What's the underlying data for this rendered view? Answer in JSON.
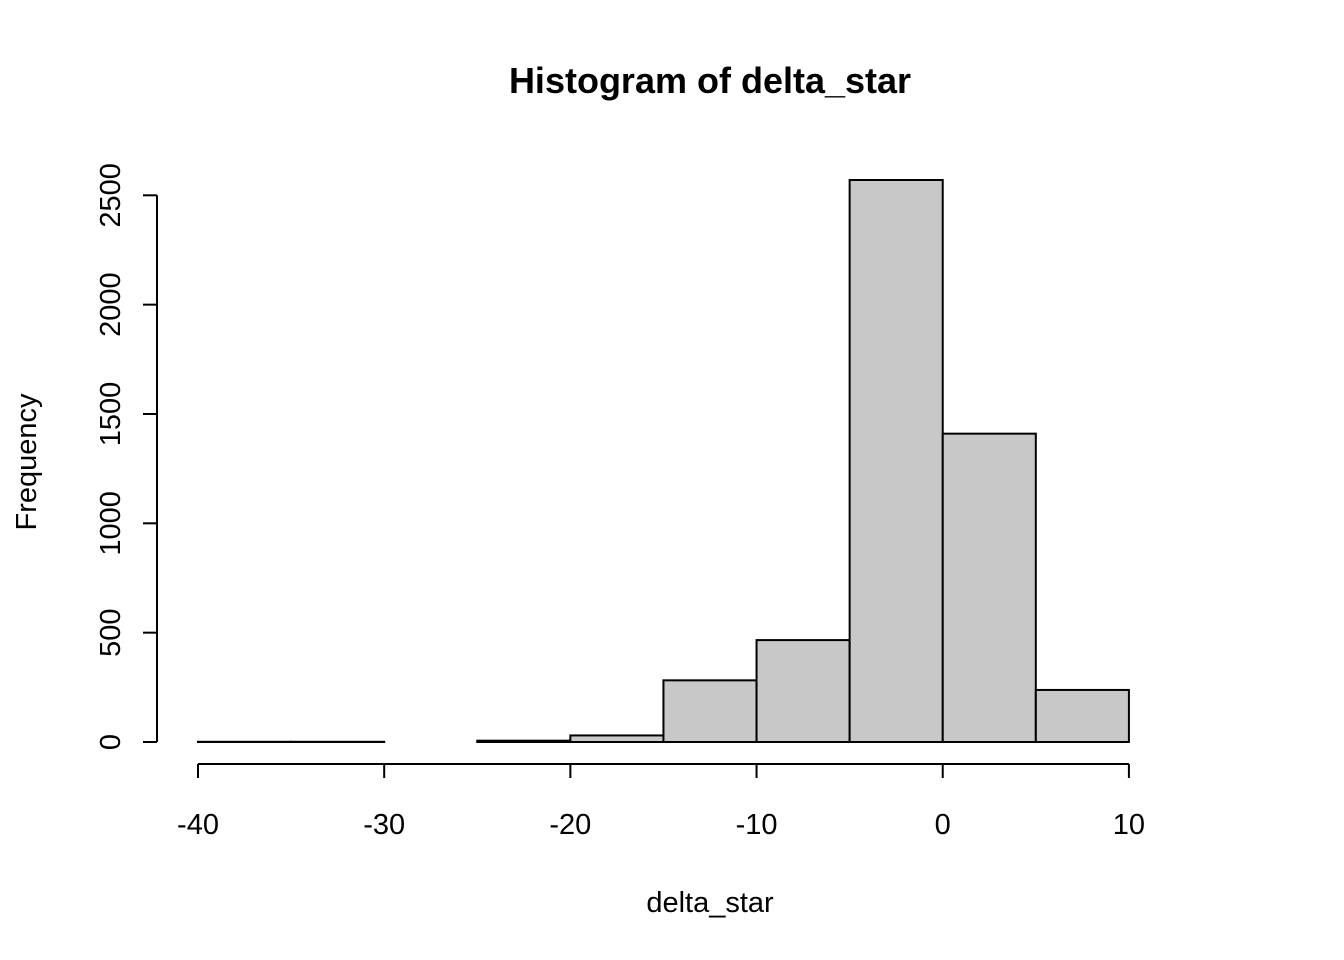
{
  "chart_data": {
    "type": "bar",
    "title": "Histogram of delta_star",
    "xlabel": "delta_star",
    "ylabel": "Frequency",
    "xlim": [
      -40,
      15
    ],
    "ylim": [
      0,
      2570
    ],
    "x_ticks": [
      -40,
      -30,
      -20,
      -10,
      0,
      10
    ],
    "y_ticks": [
      0,
      500,
      1000,
      1500,
      2000,
      2500
    ],
    "bins": [
      {
        "start": -40,
        "end": -35,
        "count": 1
      },
      {
        "start": -35,
        "end": -30,
        "count": 1
      },
      {
        "start": -30,
        "end": -25,
        "count": 0
      },
      {
        "start": -25,
        "end": -20,
        "count": 6
      },
      {
        "start": -20,
        "end": -15,
        "count": 30
      },
      {
        "start": -15,
        "end": -10,
        "count": 282
      },
      {
        "start": -10,
        "end": -5,
        "count": 466
      },
      {
        "start": -5,
        "end": 0,
        "count": 2570
      },
      {
        "start": 0,
        "end": 5,
        "count": 1410
      },
      {
        "start": 5,
        "end": 10,
        "count": 238
      },
      {
        "start": 10,
        "end": 15,
        "count": 0
      }
    ],
    "bar_color": "#c8c8c8",
    "grid": false,
    "legend": false
  }
}
